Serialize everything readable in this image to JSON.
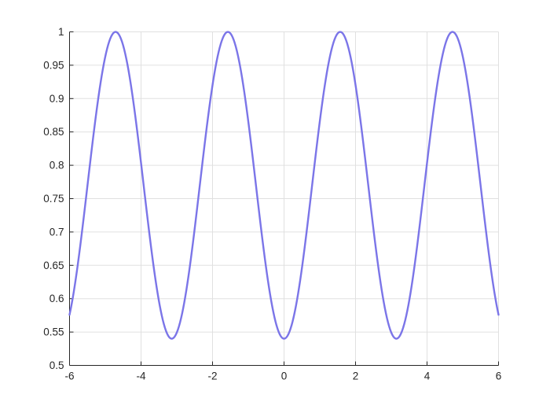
{
  "figure": {
    "background": "#ffffff",
    "title": "",
    "legend": null
  },
  "chart_data": {
    "type": "line",
    "title": "",
    "xlabel": "",
    "ylabel": "",
    "function": "y = 0.54 + 0.46*sin(x)^2",
    "params": {
      "offset": 0.54,
      "amplitude": 0.46,
      "sample_step": 0.03
    },
    "x_range": [
      -6,
      6
    ],
    "xlim": [
      -6,
      6
    ],
    "ylim": [
      0.5,
      1
    ],
    "xticks": [
      -6,
      -4,
      -2,
      0,
      2,
      4,
      6
    ],
    "yticks": [
      0.5,
      0.55,
      0.6,
      0.65,
      0.7,
      0.75,
      0.8,
      0.85,
      0.9,
      0.95,
      1
    ],
    "key_points": {
      "maxima_x": [
        -4.7124,
        -1.5708,
        1.5708,
        4.7124
      ],
      "maxima_y": 1.0,
      "minima_x": [
        -3.1416,
        0,
        3.1416
      ],
      "minima_y": 0.54,
      "endpoint_x": [
        -6,
        6
      ],
      "endpoint_y": 0.576
    },
    "grid": true,
    "legend_position": "none",
    "line_color": "#7B75E8",
    "line_width": 2.4,
    "grid_color": "#E0E0E0",
    "axis_color": "#262626",
    "tick_label_color": "#262626",
    "tick_length": 5
  }
}
